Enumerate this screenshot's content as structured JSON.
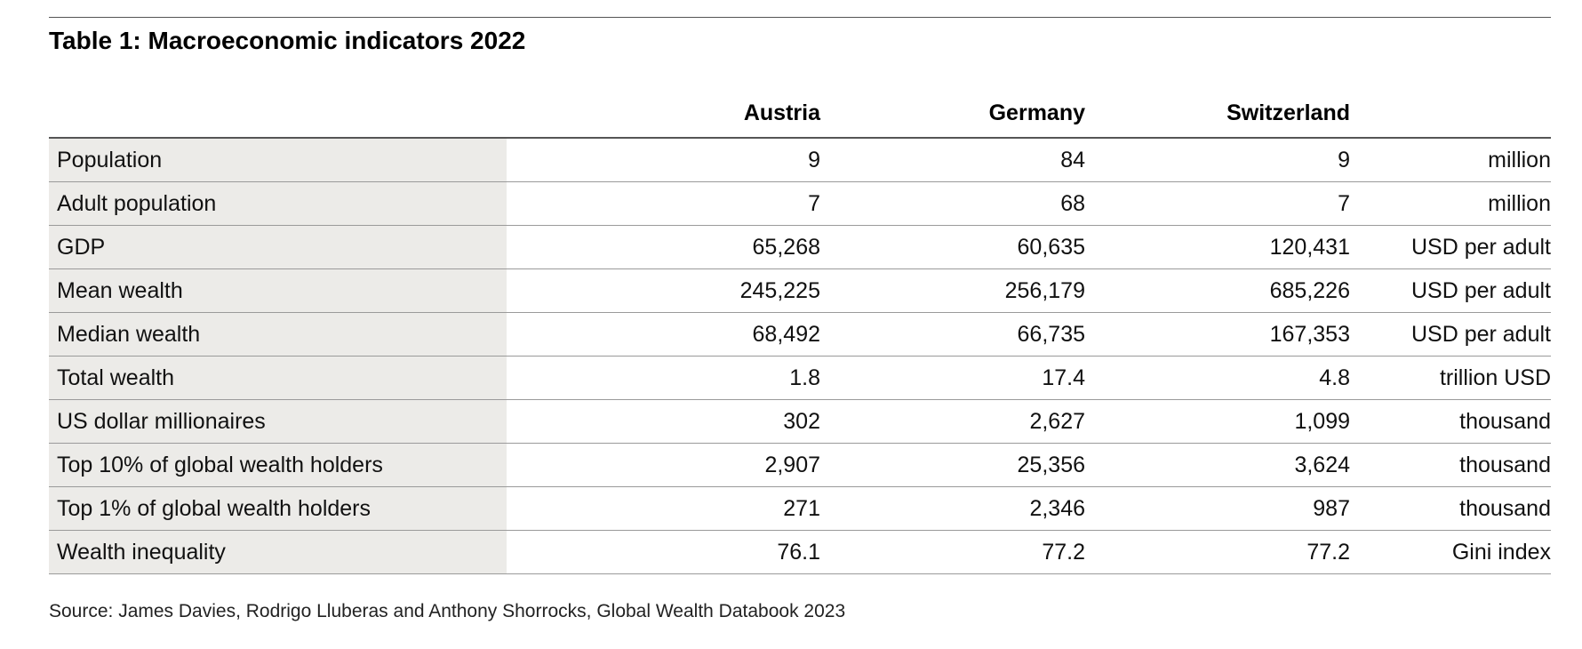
{
  "title": "Table 1: Macroeconomic indicators 2022",
  "table": {
    "columns": [
      "",
      "Austria",
      "Germany",
      "Switzerland",
      ""
    ],
    "rows": [
      {
        "label": "Population",
        "austria": "9",
        "germany": "84",
        "switzerland": "9",
        "unit": "million"
      },
      {
        "label": "Adult population",
        "austria": "7",
        "germany": "68",
        "switzerland": "7",
        "unit": "million"
      },
      {
        "label": "GDP",
        "austria": "65,268",
        "germany": "60,635",
        "switzerland": "120,431",
        "unit": "USD per adult"
      },
      {
        "label": "Mean wealth",
        "austria": "245,225",
        "germany": "256,179",
        "switzerland": "685,226",
        "unit": "USD per adult"
      },
      {
        "label": "Median wealth",
        "austria": "68,492",
        "germany": "66,735",
        "switzerland": "167,353",
        "unit": "USD per adult"
      },
      {
        "label": "Total wealth",
        "austria": "1.8",
        "germany": "17.4",
        "switzerland": "4.8",
        "unit": "trillion USD"
      },
      {
        "label": "US dollar millionaires",
        "austria": "302",
        "germany": "2,627",
        "switzerland": "1,099",
        "unit": "thousand"
      },
      {
        "label": "Top 10% of global wealth holders",
        "austria": "2,907",
        "germany": "25,356",
        "switzerland": "3,624",
        "unit": "thousand"
      },
      {
        "label": "Top 1% of global wealth holders",
        "austria": "271",
        "germany": "2,346",
        "switzerland": "987",
        "unit": "thousand"
      },
      {
        "label": "Wealth inequality",
        "austria": "76.1",
        "germany": "77.2",
        "switzerland": "77.2",
        "unit": "Gini index"
      }
    ]
  },
  "source": "Source: James Davies, Rodrigo Lluberas and Anthony Shorrocks, Global Wealth Databook 2023",
  "colors": {
    "label_column_bg": "#ecebe8",
    "rule": "#555555",
    "row_divider": "#9a9a9a"
  }
}
